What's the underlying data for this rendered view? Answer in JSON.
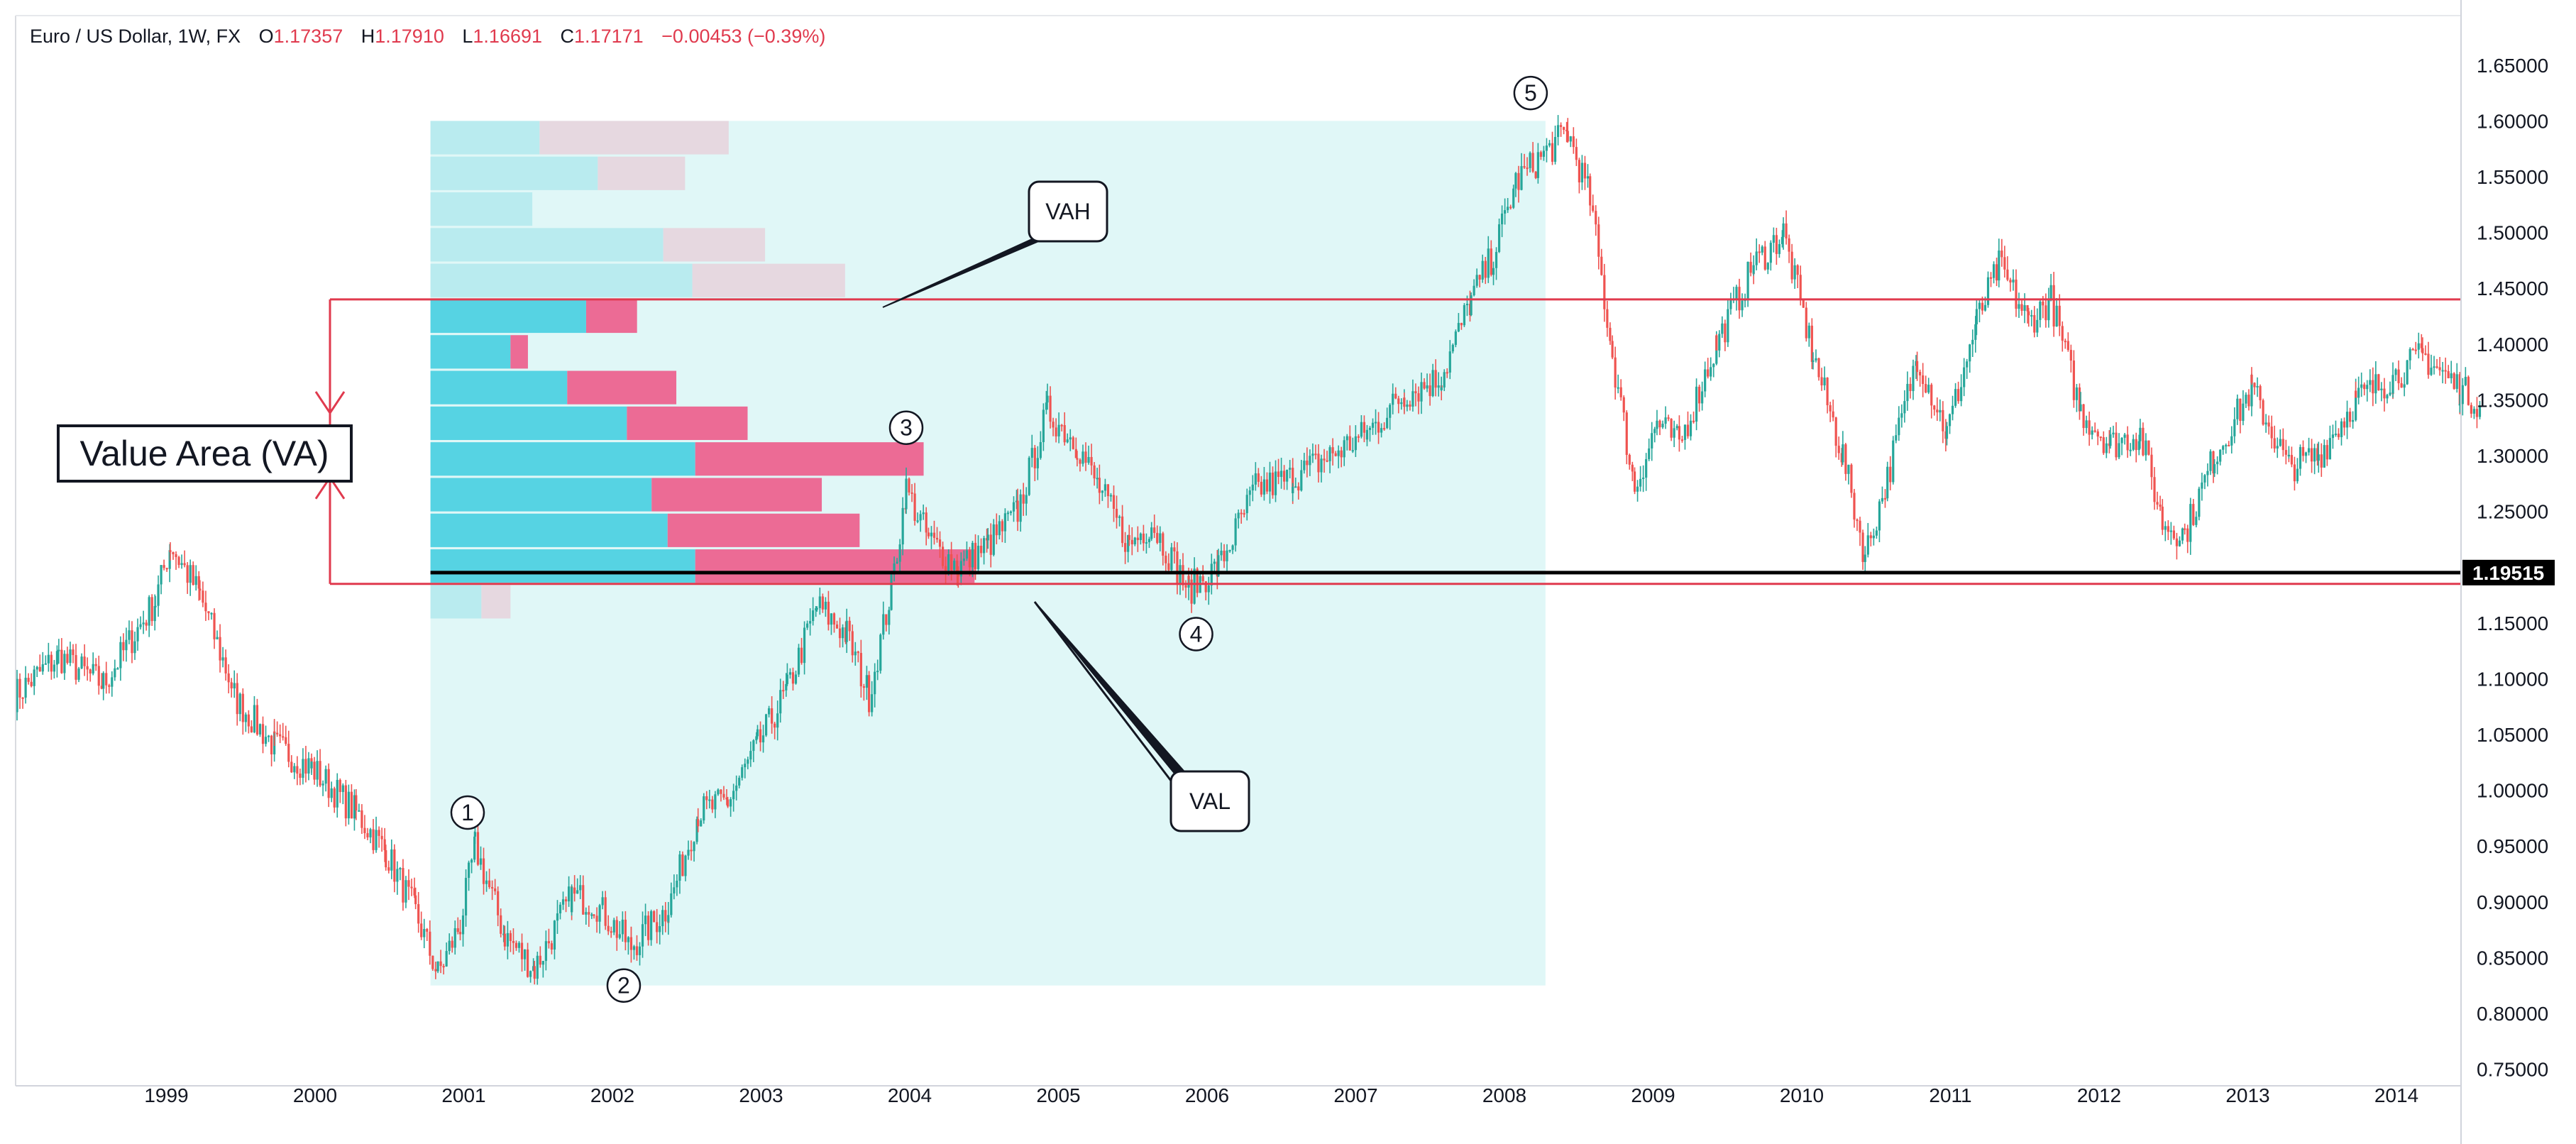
{
  "legend": {
    "symbol": "Euro / US Dollar, 1W, FX",
    "o_label": "O",
    "o_value": "1.17357",
    "h_label": "H",
    "h_value": "1.17910",
    "l_label": "L",
    "l_value": "1.16691",
    "c_label": "C",
    "c_value": "1.17171",
    "change": "−0.00453 (−0.39%)"
  },
  "colors": {
    "up": "#26a69a",
    "down": "#ef5350",
    "profile_band": "#e0f7f7",
    "vol_up_va": "#56d3e3",
    "vol_down_va": "#ec6b95",
    "vol_up_out": "#b9ebef",
    "vol_down_out": "#e6d8e0",
    "value_area_lines": "#e03a4e",
    "poc_line": "#000000",
    "price_tag_bg": "#000000"
  },
  "chart_data": {
    "type": "candlestick",
    "title": "Euro / US Dollar, 1W, FX",
    "x_ticks": [
      "1999",
      "2000",
      "2001",
      "2002",
      "2003",
      "2004",
      "2005",
      "2006",
      "2007",
      "2008",
      "2009",
      "2010",
      "2011",
      "2012",
      "2013",
      "2014"
    ],
    "y_ticks": [
      "1.65000",
      "1.60000",
      "1.55000",
      "1.50000",
      "1.45000",
      "1.40000",
      "1.35000",
      "1.30000",
      "1.25000",
      "1.20000",
      "1.15000",
      "1.10000",
      "1.05000",
      "1.00000",
      "0.95000",
      "0.90000",
      "0.85000",
      "0.80000",
      "0.75000"
    ],
    "ylim": [
      0.745,
      1.668
    ],
    "xlim": [
      1998.0,
      2014.6
    ],
    "grid": false,
    "price_path": [
      [
        1998.0,
        1.085
      ],
      [
        1998.3,
        1.12
      ],
      [
        1998.6,
        1.095
      ],
      [
        1998.95,
        1.17
      ],
      [
        1999.05,
        1.22
      ],
      [
        1999.25,
        1.175
      ],
      [
        1999.5,
        1.08
      ],
      [
        1999.75,
        1.04
      ],
      [
        2000.0,
        1.02
      ],
      [
        2000.3,
        0.98
      ],
      [
        2000.5,
        0.945
      ],
      [
        2000.7,
        0.89
      ],
      [
        2000.85,
        0.835
      ],
      [
        2001.0,
        0.88
      ],
      [
        2001.1,
        0.95
      ],
      [
        2001.3,
        0.87
      ],
      [
        2001.5,
        0.84
      ],
      [
        2001.75,
        0.905
      ],
      [
        2001.9,
        0.9
      ],
      [
        2002.15,
        0.86
      ],
      [
        2002.4,
        0.895
      ],
      [
        2002.6,
        0.98
      ],
      [
        2002.8,
        0.99
      ],
      [
        2003.0,
        1.04
      ],
      [
        2003.2,
        1.09
      ],
      [
        2003.4,
        1.165
      ],
      [
        2003.6,
        1.14
      ],
      [
        2003.75,
        1.085
      ],
      [
        2003.9,
        1.18
      ],
      [
        2004.0,
        1.27
      ],
      [
        2004.15,
        1.225
      ],
      [
        2004.35,
        1.2
      ],
      [
        2004.55,
        1.22
      ],
      [
        2004.75,
        1.25
      ],
      [
        2004.95,
        1.34
      ],
      [
        2005.15,
        1.31
      ],
      [
        2005.3,
        1.27
      ],
      [
        2005.5,
        1.22
      ],
      [
        2005.65,
        1.24
      ],
      [
        2005.9,
        1.18
      ],
      [
        2006.1,
        1.2
      ],
      [
        2006.35,
        1.27
      ],
      [
        2006.6,
        1.28
      ],
      [
        2006.85,
        1.3
      ],
      [
        2007.1,
        1.32
      ],
      [
        2007.35,
        1.355
      ],
      [
        2007.6,
        1.37
      ],
      [
        2007.8,
        1.44
      ],
      [
        2007.95,
        1.48
      ],
      [
        2008.1,
        1.545
      ],
      [
        2008.25,
        1.565
      ],
      [
        2008.45,
        1.59
      ],
      [
        2008.6,
        1.53
      ],
      [
        2008.75,
        1.39
      ],
      [
        2008.9,
        1.27
      ],
      [
        2009.05,
        1.33
      ],
      [
        2009.2,
        1.31
      ],
      [
        2009.45,
        1.4
      ],
      [
        2009.7,
        1.47
      ],
      [
        2009.9,
        1.5
      ],
      [
        2010.1,
        1.39
      ],
      [
        2010.3,
        1.3
      ],
      [
        2010.45,
        1.21
      ],
      [
        2010.6,
        1.28
      ],
      [
        2010.8,
        1.39
      ],
      [
        2011.0,
        1.32
      ],
      [
        2011.2,
        1.42
      ],
      [
        2011.35,
        1.47
      ],
      [
        2011.55,
        1.42
      ],
      [
        2011.7,
        1.44
      ],
      [
        2011.9,
        1.34
      ],
      [
        2012.1,
        1.31
      ],
      [
        2012.3,
        1.32
      ],
      [
        2012.45,
        1.24
      ],
      [
        2012.6,
        1.23
      ],
      [
        2012.8,
        1.3
      ],
      [
        2013.05,
        1.36
      ],
      [
        2013.3,
        1.29
      ],
      [
        2013.5,
        1.3
      ],
      [
        2013.75,
        1.35
      ],
      [
        2014.0,
        1.37
      ],
      [
        2014.2,
        1.39
      ],
      [
        2014.45,
        1.36
      ],
      [
        2014.6,
        1.345
      ]
    ],
    "volume_profile": {
      "period": [
        2000.8,
        2008.3
      ],
      "range": [
        0.825,
        1.6
      ],
      "poc": 1.19515,
      "poc_label": "1.19515",
      "value_area_high": 1.44,
      "value_area_low": 1.185,
      "rows": [
        {
          "low": 1.57,
          "high": 1.6,
          "up": 0.75,
          "down": 1.3,
          "in_va": false
        },
        {
          "low": 1.538,
          "high": 1.568,
          "up": 1.15,
          "down": 0.6,
          "in_va": false
        },
        {
          "low": 1.506,
          "high": 1.536,
          "up": 0.7,
          "down": 0,
          "in_va": false
        },
        {
          "low": 1.474,
          "high": 1.504,
          "up": 1.6,
          "down": 0.7,
          "in_va": false
        },
        {
          "low": 1.442,
          "high": 1.472,
          "up": 1.8,
          "down": 1.05,
          "in_va": false
        },
        {
          "low": 1.41,
          "high": 1.44,
          "up": 1.07,
          "down": 0.35,
          "in_va": true
        },
        {
          "low": 1.378,
          "high": 1.408,
          "up": 0.55,
          "down": 0.12,
          "in_va": true
        },
        {
          "low": 1.346,
          "high": 1.376,
          "up": 0.94,
          "down": 0.75,
          "in_va": true
        },
        {
          "low": 1.314,
          "high": 1.344,
          "up": 1.35,
          "down": 0.83,
          "in_va": true
        },
        {
          "low": 1.282,
          "high": 1.312,
          "up": 1.82,
          "down": 1.57,
          "in_va": true
        },
        {
          "low": 1.25,
          "high": 1.28,
          "up": 1.52,
          "down": 1.17,
          "in_va": true
        },
        {
          "low": 1.218,
          "high": 1.248,
          "up": 1.63,
          "down": 1.32,
          "in_va": true
        },
        {
          "low": 1.186,
          "high": 1.216,
          "up": 1.82,
          "down": 1.92,
          "in_va": true
        },
        {
          "low": 1.154,
          "high": 1.184,
          "up": 0.35,
          "down": 0.2,
          "in_va": false
        }
      ]
    },
    "annotations": [
      {
        "id": "wave-1",
        "text": "1",
        "x": 2001.05,
        "y": 0.98
      },
      {
        "id": "wave-2",
        "text": "2",
        "x": 2002.1,
        "y": 0.825
      },
      {
        "id": "wave-3",
        "text": "3",
        "x": 2004.0,
        "y": 1.325
      },
      {
        "id": "wave-4",
        "text": "4",
        "x": 2005.95,
        "y": 1.14
      },
      {
        "id": "wave-5",
        "text": "5",
        "x": 2008.2,
        "y": 1.625
      }
    ],
    "callouts": {
      "vah": "VAH",
      "val": "VAL",
      "value_area": "Value Area (VA)"
    }
  }
}
